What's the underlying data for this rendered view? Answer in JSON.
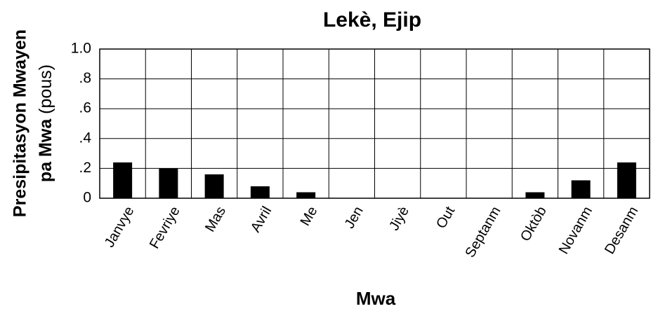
{
  "chart_data": {
    "type": "bar",
    "title": "Lekè, Ejip",
    "ylabel": [
      "Presipitasyon Mwayen",
      "pa Mwa",
      "(pous)"
    ],
    "xlabel": "Mwa",
    "categories": [
      "Janvye",
      "Fevriye",
      "Mas",
      "Avril",
      "Me",
      "Jen",
      "Jiyè",
      "Out",
      "Septanm",
      "Oktòb",
      "Novanm",
      "Desanm"
    ],
    "values": [
      0.24,
      0.2,
      0.16,
      0.08,
      0.04,
      0,
      0,
      0,
      0,
      0.04,
      0.12,
      0.24
    ],
    "color": "#000000",
    "ylim": [
      0,
      1
    ],
    "yticks": [
      0,
      {
        "value": 0.2,
        "label": ".2"
      },
      {
        "value": 0.4,
        "label": ".4"
      },
      {
        "value": 0.6,
        "label": ".6"
      },
      {
        "value": 0.8,
        "label": ".8"
      },
      {
        "value": 1,
        "label": "1.0"
      }
    ],
    "grid": true
  }
}
